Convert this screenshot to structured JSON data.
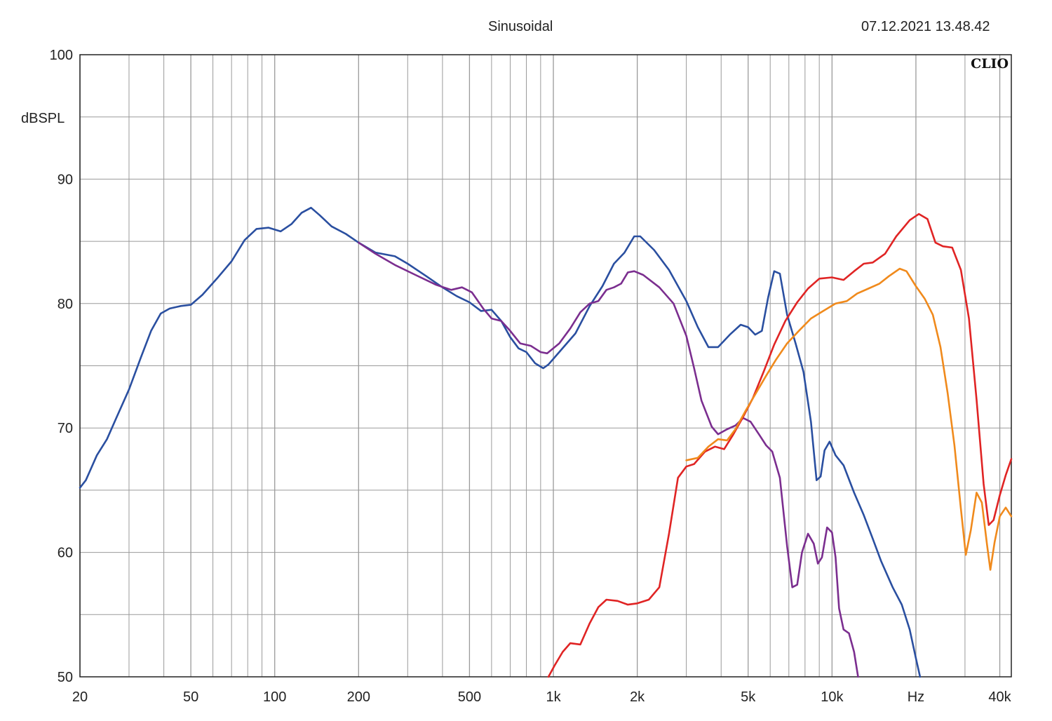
{
  "header": {
    "title": "Sinusoidal",
    "timestamp": "07.12.2021 13.48.42"
  },
  "brand": "CLIO",
  "chart_data": {
    "type": "line",
    "title": "Sinusoidal",
    "ylabel": "dBSPL",
    "xlabel": "Hz",
    "xscale": "log",
    "xlim": [
      20,
      44000
    ],
    "ylim": [
      50,
      100
    ],
    "yticks": [
      100,
      90,
      80,
      70,
      60,
      50
    ],
    "xtick_labels": [
      {
        "f": 20,
        "label": "20"
      },
      {
        "f": 50,
        "label": "50"
      },
      {
        "f": 100,
        "label": "100"
      },
      {
        "f": 200,
        "label": "200"
      },
      {
        "f": 500,
        "label": "500"
      },
      {
        "f": 1000,
        "label": "1k"
      },
      {
        "f": 2000,
        "label": "2k"
      },
      {
        "f": 5000,
        "label": "5k"
      },
      {
        "f": 10000,
        "label": "10k"
      },
      {
        "f": 20000,
        "label": "Hz"
      },
      {
        "f": 40000,
        "label": "40k"
      }
    ],
    "grid": true,
    "legend": "none",
    "series": [
      {
        "color": "#2a4fa0",
        "points": [
          [
            20,
            65.2
          ],
          [
            21,
            65.8
          ],
          [
            23,
            67.8
          ],
          [
            25,
            69.1
          ],
          [
            27,
            70.8
          ],
          [
            30,
            73.1
          ],
          [
            33,
            75.6
          ],
          [
            36,
            77.8
          ],
          [
            39,
            79.2
          ],
          [
            42,
            79.6
          ],
          [
            46,
            79.8
          ],
          [
            50,
            79.9
          ],
          [
            55,
            80.7
          ],
          [
            62,
            82
          ],
          [
            70,
            83.4
          ],
          [
            78,
            85.1
          ],
          [
            86,
            86
          ],
          [
            95,
            86.1
          ],
          [
            105,
            85.8
          ],
          [
            115,
            86.4
          ],
          [
            125,
            87.3
          ],
          [
            135,
            87.7
          ],
          [
            145,
            87.1
          ],
          [
            160,
            86.2
          ],
          [
            180,
            85.6
          ],
          [
            200,
            84.9
          ],
          [
            230,
            84.1
          ],
          [
            270,
            83.8
          ],
          [
            300,
            83.2
          ],
          [
            350,
            82.2
          ],
          [
            400,
            81.3
          ],
          [
            450,
            80.6
          ],
          [
            500,
            80.1
          ],
          [
            550,
            79.4
          ],
          [
            600,
            79.5
          ],
          [
            650,
            78.6
          ],
          [
            700,
            77.3
          ],
          [
            750,
            76.4
          ],
          [
            800,
            76.1
          ],
          [
            860,
            75.2
          ],
          [
            920,
            74.8
          ],
          [
            960,
            75.1
          ],
          [
            1050,
            76.1
          ],
          [
            1200,
            77.6
          ],
          [
            1350,
            79.8
          ],
          [
            1500,
            81.4
          ],
          [
            1650,
            83.2
          ],
          [
            1800,
            84.1
          ],
          [
            1950,
            85.4
          ],
          [
            2050,
            85.4
          ],
          [
            2300,
            84.3
          ],
          [
            2600,
            82.7
          ],
          [
            3000,
            80.2
          ],
          [
            3300,
            78.1
          ],
          [
            3600,
            76.5
          ],
          [
            3900,
            76.5
          ],
          [
            4300,
            77.5
          ],
          [
            4700,
            78.3
          ],
          [
            5000,
            78.1
          ],
          [
            5300,
            77.5
          ],
          [
            5600,
            77.8
          ],
          [
            5900,
            80.5
          ],
          [
            6200,
            82.6
          ],
          [
            6500,
            82.4
          ],
          [
            6900,
            79.1
          ],
          [
            7400,
            76.8
          ],
          [
            7900,
            74.5
          ],
          [
            8400,
            70.5
          ],
          [
            8800,
            65.8
          ],
          [
            9100,
            66.1
          ],
          [
            9400,
            68.2
          ],
          [
            9800,
            68.9
          ],
          [
            10300,
            67.8
          ],
          [
            11000,
            67
          ],
          [
            12000,
            64.8
          ],
          [
            13000,
            63
          ],
          [
            14000,
            61.1
          ],
          [
            15000,
            59.3
          ],
          [
            16500,
            57.2
          ],
          [
            17800,
            55.8
          ],
          [
            19000,
            53.8
          ],
          [
            20000,
            51.5
          ],
          [
            20700,
            50
          ]
        ]
      },
      {
        "color": "#7b2e8f",
        "points": [
          [
            200,
            84.9
          ],
          [
            230,
            84
          ],
          [
            270,
            83.1
          ],
          [
            320,
            82.3
          ],
          [
            380,
            81.5
          ],
          [
            430,
            81.1
          ],
          [
            470,
            81.3
          ],
          [
            510,
            80.9
          ],
          [
            560,
            79.6
          ],
          [
            600,
            78.8
          ],
          [
            650,
            78.6
          ],
          [
            700,
            77.8
          ],
          [
            760,
            76.8
          ],
          [
            830,
            76.6
          ],
          [
            900,
            76.1
          ],
          [
            950,
            76
          ],
          [
            1050,
            76.8
          ],
          [
            1150,
            78
          ],
          [
            1250,
            79.3
          ],
          [
            1350,
            80
          ],
          [
            1450,
            80.2
          ],
          [
            1550,
            81.1
          ],
          [
            1650,
            81.3
          ],
          [
            1750,
            81.6
          ],
          [
            1850,
            82.5
          ],
          [
            1950,
            82.6
          ],
          [
            2100,
            82.3
          ],
          [
            2400,
            81.3
          ],
          [
            2700,
            80
          ],
          [
            3000,
            77.4
          ],
          [
            3200,
            74.8
          ],
          [
            3400,
            72.2
          ],
          [
            3700,
            70.1
          ],
          [
            3900,
            69.5
          ],
          [
            4200,
            69.9
          ],
          [
            4500,
            70.2
          ],
          [
            4800,
            70.8
          ],
          [
            5100,
            70.5
          ],
          [
            5500,
            69.4
          ],
          [
            5800,
            68.6
          ],
          [
            6100,
            68.1
          ],
          [
            6500,
            66
          ],
          [
            6900,
            60.5
          ],
          [
            7200,
            57.2
          ],
          [
            7500,
            57.4
          ],
          [
            7800,
            60
          ],
          [
            8200,
            61.5
          ],
          [
            8600,
            60.7
          ],
          [
            8900,
            59.1
          ],
          [
            9200,
            59.6
          ],
          [
            9600,
            62
          ],
          [
            10000,
            61.6
          ],
          [
            10300,
            59.6
          ],
          [
            10600,
            55.5
          ],
          [
            11000,
            53.8
          ],
          [
            11500,
            53.5
          ],
          [
            12000,
            52
          ],
          [
            12400,
            50
          ]
        ]
      },
      {
        "color": "#e02424",
        "points": [
          [
            960,
            50
          ],
          [
            1010,
            50.9
          ],
          [
            1080,
            52
          ],
          [
            1150,
            52.7
          ],
          [
            1250,
            52.6
          ],
          [
            1350,
            54.3
          ],
          [
            1450,
            55.6
          ],
          [
            1550,
            56.2
          ],
          [
            1700,
            56.1
          ],
          [
            1850,
            55.8
          ],
          [
            2000,
            55.9
          ],
          [
            2200,
            56.2
          ],
          [
            2400,
            57.2
          ],
          [
            2600,
            61.5
          ],
          [
            2800,
            66
          ],
          [
            3000,
            66.9
          ],
          [
            3200,
            67.1
          ],
          [
            3500,
            68.1
          ],
          [
            3800,
            68.5
          ],
          [
            4100,
            68.3
          ],
          [
            4400,
            69.4
          ],
          [
            4800,
            70.9
          ],
          [
            5200,
            72.4
          ],
          [
            5700,
            74.6
          ],
          [
            6200,
            76.7
          ],
          [
            6800,
            78.6
          ],
          [
            7500,
            80.1
          ],
          [
            8200,
            81.2
          ],
          [
            9000,
            82
          ],
          [
            10000,
            82.1
          ],
          [
            11000,
            81.9
          ],
          [
            12000,
            82.6
          ],
          [
            13000,
            83.2
          ],
          [
            14000,
            83.3
          ],
          [
            15500,
            84
          ],
          [
            17000,
            85.4
          ],
          [
            19000,
            86.7
          ],
          [
            20500,
            87.2
          ],
          [
            22000,
            86.8
          ],
          [
            23500,
            84.9
          ],
          [
            25000,
            84.6
          ],
          [
            27000,
            84.5
          ],
          [
            29000,
            82.7
          ],
          [
            31000,
            78.8
          ],
          [
            33000,
            72.3
          ],
          [
            35000,
            65.5
          ],
          [
            36500,
            62.2
          ],
          [
            38000,
            62.6
          ],
          [
            40000,
            64.6
          ],
          [
            42000,
            66.2
          ],
          [
            44000,
            67.5
          ]
        ]
      },
      {
        "color": "#f08a1c",
        "points": [
          [
            3000,
            67.4
          ],
          [
            3300,
            67.6
          ],
          [
            3600,
            68.5
          ],
          [
            3900,
            69.1
          ],
          [
            4200,
            69
          ],
          [
            4500,
            69.9
          ],
          [
            4900,
            71.4
          ],
          [
            5300,
            72.7
          ],
          [
            5800,
            74.2
          ],
          [
            6300,
            75.5
          ],
          [
            6900,
            76.8
          ],
          [
            7600,
            77.8
          ],
          [
            8400,
            78.8
          ],
          [
            9300,
            79.4
          ],
          [
            10300,
            80
          ],
          [
            11300,
            80.2
          ],
          [
            12300,
            80.8
          ],
          [
            13500,
            81.2
          ],
          [
            14800,
            81.6
          ],
          [
            16000,
            82.2
          ],
          [
            17500,
            82.8
          ],
          [
            18500,
            82.6
          ],
          [
            20000,
            81.4
          ],
          [
            21500,
            80.4
          ],
          [
            23000,
            79.1
          ],
          [
            24500,
            76.5
          ],
          [
            26000,
            72.8
          ],
          [
            27500,
            68.6
          ],
          [
            29000,
            63.5
          ],
          [
            30200,
            59.8
          ],
          [
            31500,
            61.8
          ],
          [
            33000,
            64.8
          ],
          [
            34500,
            64
          ],
          [
            36000,
            60.6
          ],
          [
            37000,
            58.6
          ],
          [
            38300,
            60.8
          ],
          [
            40000,
            62.9
          ],
          [
            42000,
            63.6
          ],
          [
            44000,
            62.9
          ]
        ]
      }
    ]
  }
}
